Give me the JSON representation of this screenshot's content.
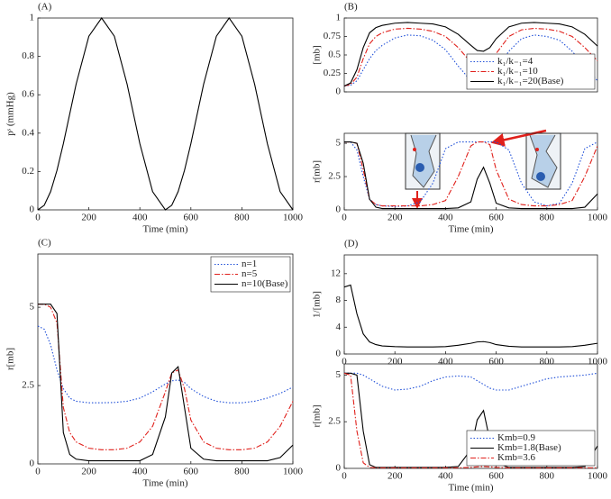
{
  "chart_data": [
    {
      "type": "line",
      "title": "(A)",
      "x_label": "Time (min)",
      "y_label": "pˢ (mmHg)",
      "x": [
        0,
        25,
        50,
        75,
        100,
        125,
        150,
        200,
        250,
        300,
        350,
        400,
        450,
        500,
        525,
        550,
        575,
        600,
        650,
        700,
        750,
        800,
        850,
        900,
        950,
        1000
      ],
      "xlim": [
        0,
        1000
      ],
      "xticks": [
        0,
        200,
        400,
        600,
        800,
        1000
      ],
      "ylim": [
        0,
        1
      ],
      "yticks": [
        0,
        0.2,
        0.4,
        0.6,
        0.8,
        1
      ],
      "series": [
        {
          "color": "#000000",
          "style": "solid",
          "values": [
            0,
            0.024,
            0.095,
            0.206,
            0.345,
            0.5,
            0.655,
            0.905,
            1,
            0.905,
            0.655,
            0.345,
            0.095,
            0,
            0.024,
            0.095,
            0.206,
            0.345,
            0.655,
            0.905,
            1,
            0.905,
            0.655,
            0.345,
            0.095,
            0
          ]
        }
      ]
    },
    {
      "type": "line",
      "title": "(B)",
      "y_label": "[mb]",
      "x": [
        0,
        25,
        50,
        75,
        100,
        125,
        150,
        200,
        250,
        300,
        350,
        400,
        450,
        500,
        525,
        550,
        575,
        600,
        650,
        700,
        750,
        800,
        850,
        900,
        950,
        1000
      ],
      "xlim": [
        0,
        1000
      ],
      "ylim": [
        0,
        1
      ],
      "yticks": [
        0,
        0.25,
        0.5,
        0.75,
        1
      ],
      "legend": "lower-right",
      "series": [
        {
          "name": "k₁/k₋₁=4",
          "color": "#1f4fd8",
          "style": "dotted",
          "values": [
            0.08,
            0.09,
            0.15,
            0.3,
            0.45,
            0.56,
            0.63,
            0.73,
            0.77,
            0.76,
            0.7,
            0.57,
            0.35,
            0.15,
            0.1,
            0.1,
            0.16,
            0.3,
            0.55,
            0.72,
            0.77,
            0.75,
            0.7,
            0.55,
            0.35,
            0.15
          ]
        },
        {
          "name": "k₁/k₋₁=10",
          "color": "#e0201b",
          "style": "dashdot",
          "values": [
            0.08,
            0.1,
            0.2,
            0.45,
            0.65,
            0.75,
            0.8,
            0.85,
            0.86,
            0.85,
            0.82,
            0.75,
            0.6,
            0.4,
            0.32,
            0.3,
            0.37,
            0.52,
            0.75,
            0.84,
            0.86,
            0.85,
            0.82,
            0.75,
            0.6,
            0.42
          ]
        },
        {
          "name": "k₁/k₋₁=20(Base)",
          "color": "#000000",
          "style": "solid",
          "values": [
            0.08,
            0.12,
            0.3,
            0.6,
            0.8,
            0.87,
            0.9,
            0.93,
            0.94,
            0.93,
            0.92,
            0.88,
            0.78,
            0.63,
            0.56,
            0.55,
            0.6,
            0.72,
            0.88,
            0.93,
            0.94,
            0.93,
            0.92,
            0.88,
            0.78,
            0.62
          ]
        }
      ]
    },
    {
      "type": "line",
      "x_label": "Time (min)",
      "y_label": "r[mb]",
      "x": [
        0,
        25,
        50,
        75,
        100,
        125,
        150,
        200,
        250,
        300,
        350,
        400,
        450,
        500,
        525,
        550,
        575,
        600,
        650,
        700,
        750,
        800,
        850,
        900,
        950,
        1000
      ],
      "xlim": [
        0,
        1000
      ],
      "xticks": [
        0,
        200,
        400,
        600,
        800,
        1000
      ],
      "ylim": [
        0,
        5.75
      ],
      "yticks": [
        0,
        2.5,
        5
      ],
      "series": [
        {
          "color": "#1f4fd8",
          "style": "dotted",
          "values": [
            5.1,
            5.1,
            4.5,
            2.5,
            0.8,
            0.4,
            0.3,
            0.25,
            0.3,
            0.6,
            2.0,
            4.6,
            5.1,
            5.1,
            5.1,
            5.1,
            5.1,
            5.1,
            4.5,
            2.0,
            0.6,
            0.3,
            0.5,
            2.0,
            4.6,
            5.1
          ]
        },
        {
          "color": "#e0201b",
          "style": "dashdot",
          "values": [
            5.1,
            5.1,
            5.0,
            3.0,
            0.8,
            0.4,
            0.3,
            0.3,
            0.3,
            0.3,
            0.4,
            0.7,
            2.5,
            4.8,
            5.1,
            5.1,
            4.9,
            3.0,
            0.8,
            0.4,
            0.3,
            0.3,
            0.4,
            0.7,
            2.5,
            4.8
          ]
        },
        {
          "color": "#000000",
          "style": "solid",
          "values": [
            5.1,
            5.1,
            5.0,
            3.5,
            0.8,
            0.2,
            0.1,
            0.1,
            0.1,
            0.1,
            0.1,
            0.1,
            0.15,
            0.6,
            2.3,
            3.2,
            2.0,
            0.5,
            0.15,
            0.1,
            0.1,
            0.1,
            0.1,
            0.1,
            0.2,
            1.2
          ]
        }
      ]
    },
    {
      "type": "line",
      "title": "(C)",
      "x_label": "Time (min)",
      "y_label": "r[mb]",
      "x": [
        0,
        25,
        50,
        75,
        100,
        125,
        150,
        200,
        250,
        300,
        350,
        400,
        450,
        500,
        525,
        550,
        575,
        600,
        650,
        700,
        750,
        800,
        850,
        900,
        950,
        1000
      ],
      "xlim": [
        0,
        1000
      ],
      "xticks": [
        0,
        200,
        400,
        600,
        800,
        1000
      ],
      "ylim": [
        0,
        6.7
      ],
      "yticks": [
        0,
        2.5,
        5
      ],
      "legend": "upper-right",
      "series": [
        {
          "name": "n=1",
          "color": "#1f4fd8",
          "style": "dotted",
          "values": [
            4.4,
            4.3,
            3.8,
            3.0,
            2.4,
            2.1,
            2.0,
            1.95,
            1.95,
            1.96,
            2.0,
            2.1,
            2.3,
            2.55,
            2.65,
            2.68,
            2.6,
            2.4,
            2.15,
            2.0,
            1.95,
            1.95,
            2.0,
            2.1,
            2.25,
            2.45
          ]
        },
        {
          "name": "n=5",
          "color": "#e0201b",
          "style": "dashdot",
          "values": [
            5.1,
            5.1,
            5.0,
            4.5,
            1.8,
            1.0,
            0.7,
            0.5,
            0.45,
            0.45,
            0.5,
            0.7,
            1.2,
            2.3,
            2.9,
            3.0,
            2.4,
            1.4,
            0.7,
            0.5,
            0.45,
            0.45,
            0.5,
            0.7,
            1.2,
            2.0
          ]
        },
        {
          "name": "n=10(Base)",
          "color": "#000000",
          "style": "solid",
          "values": [
            5.1,
            5.1,
            5.1,
            4.8,
            1.0,
            0.3,
            0.15,
            0.1,
            0.1,
            0.1,
            0.1,
            0.1,
            0.3,
            1.5,
            2.9,
            3.1,
            1.8,
            0.5,
            0.15,
            0.1,
            0.1,
            0.1,
            0.1,
            0.1,
            0.2,
            0.6
          ]
        }
      ]
    },
    {
      "type": "line",
      "title": "(D)",
      "y_label": "1/[mb]",
      "x": [
        0,
        25,
        50,
        75,
        100,
        125,
        150,
        200,
        250,
        300,
        350,
        400,
        450,
        500,
        525,
        550,
        575,
        600,
        650,
        700,
        750,
        800,
        850,
        900,
        950,
        1000
      ],
      "xlim": [
        0,
        1000
      ],
      "xticks": [
        0,
        200,
        400,
        600,
        800,
        1000
      ],
      "ylim": [
        0,
        14.8
      ],
      "yticks": [
        0,
        4,
        8,
        12
      ],
      "series": [
        {
          "color": "#000000",
          "style": "solid",
          "values": [
            10.0,
            10.3,
            6.0,
            3.0,
            1.8,
            1.4,
            1.2,
            1.1,
            1.05,
            1.05,
            1.05,
            1.1,
            1.3,
            1.6,
            1.8,
            1.85,
            1.7,
            1.4,
            1.15,
            1.05,
            1.05,
            1.05,
            1.05,
            1.1,
            1.3,
            1.6
          ]
        }
      ]
    },
    {
      "type": "line",
      "x_label": "Time (min)",
      "y_label": "r[mb]",
      "x": [
        0,
        25,
        50,
        75,
        100,
        125,
        150,
        200,
        250,
        300,
        350,
        400,
        450,
        500,
        525,
        550,
        575,
        600,
        650,
        700,
        750,
        800,
        850,
        900,
        950,
        1000
      ],
      "xlim": [
        0,
        1000
      ],
      "xticks": [
        0,
        200,
        400,
        600,
        800,
        1000
      ],
      "ylim": [
        0,
        5.6
      ],
      "yticks": [
        0,
        2.5,
        5
      ],
      "legend": "lower-right",
      "series": [
        {
          "name": "Kmb=0.9",
          "color": "#1f4fd8",
          "style": "dotted",
          "values": [
            5.1,
            5.1,
            5.1,
            5.0,
            4.8,
            4.6,
            4.4,
            4.2,
            4.25,
            4.4,
            4.7,
            4.9,
            4.95,
            4.9,
            4.7,
            4.5,
            4.3,
            4.2,
            4.2,
            4.4,
            4.6,
            4.8,
            4.9,
            4.95,
            5.0,
            5.1
          ]
        },
        {
          "name": "Kmb=1.8(Base)",
          "color": "#000000",
          "style": "solid",
          "values": [
            5.1,
            5.1,
            5.0,
            2.0,
            0.2,
            0.05,
            0.05,
            0.05,
            0.05,
            0.05,
            0.05,
            0.05,
            0.1,
            1.0,
            2.6,
            3.1,
            1.5,
            0.3,
            0.05,
            0.05,
            0.05,
            0.05,
            0.05,
            0.05,
            0.1,
            1.2
          ]
        },
        {
          "name": "Kmb=3.6",
          "color": "#e0201b",
          "style": "dashdot",
          "values": [
            5.1,
            5.0,
            2.0,
            0.3,
            0.05,
            0.03,
            0.03,
            0.03,
            0.03,
            0.03,
            0.03,
            0.03,
            0.03,
            0.05,
            0.08,
            0.1,
            0.08,
            0.05,
            0.03,
            0.03,
            0.03,
            0.03,
            0.03,
            0.03,
            0.03,
            0.03
          ]
        }
      ]
    }
  ]
}
